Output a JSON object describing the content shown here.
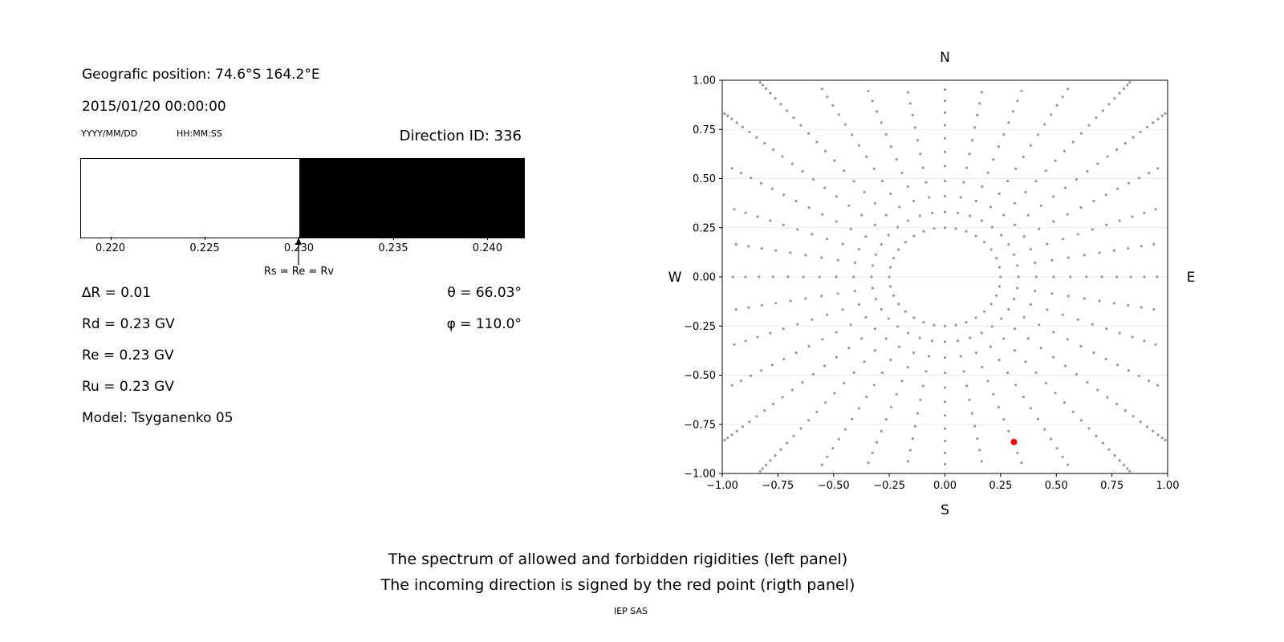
{
  "left_panel": {
    "geo_position": "Geografic position: 74.6°S 164.2°E",
    "datetime": "2015/01/20 00:00:00",
    "date_format_label": "YYYY/MM/DD",
    "time_format_label": "HH:MM:SS",
    "direction_id": "Direction ID: 336",
    "arrow_label": "Rs = Re = Rv",
    "params_left": [
      "∆R = 0.01",
      "Rd = 0.23 GV",
      "Re = 0.23 GV",
      "Ru = 0.23 GV",
      "Model: Tsyganenko 05"
    ],
    "params_right": [
      "θ = 66.03°",
      "φ = 110.0°"
    ]
  },
  "captions": {
    "line1": "The spectrum of allowed and forbidden rigidities (left panel)",
    "line2": "The incoming direction is signed by the red point (rigth panel)",
    "credit": "IEP SAS"
  },
  "chart_data": [
    {
      "type": "area",
      "title": "Spectrum of allowed and forbidden rigidities",
      "xlim": [
        0.2184,
        0.2419
      ],
      "ticks": [
        0.22,
        0.225,
        0.23,
        0.235,
        0.24
      ],
      "tick_labels": [
        "0.220",
        "0.225",
        "0.230",
        "0.235",
        "0.240"
      ],
      "regions": [
        {
          "name": "spectrum-region-white",
          "from": 0.2184,
          "to": 0.23,
          "color": "#ffffff"
        },
        {
          "name": "spectrum-region-black",
          "from": 0.23,
          "to": 0.2419,
          "color": "#000000"
        }
      ],
      "annotation": {
        "x": 0.23,
        "label": "Rs = Re = Rv"
      }
    },
    {
      "type": "scatter",
      "title": "Incoming direction map",
      "xlim": [
        -1,
        1
      ],
      "ylim": [
        -1,
        1
      ],
      "x_ticks": [
        -1,
        -0.75,
        -0.5,
        -0.25,
        0,
        0.25,
        0.5,
        0.75,
        1
      ],
      "y_ticks": [
        1,
        0.75,
        0.5,
        0.25,
        0,
        -0.25,
        -0.5,
        -0.75,
        -1
      ],
      "x_tick_labels": [
        "−1.00",
        "−0.75",
        "−0.50",
        "−0.25",
        "0.00",
        "0.25",
        "0.50",
        "0.75",
        "1.00"
      ],
      "y_tick_labels": [
        "1.00",
        "0.75",
        "0.50",
        "0.25",
        "0.00",
        "−0.25",
        "−0.50",
        "−0.75",
        "−1.00"
      ],
      "compass": {
        "top": "N",
        "bottom": "S",
        "left": "W",
        "right": "E"
      },
      "grid": {
        "horizontal": true,
        "vertical": false,
        "color": "#ececec"
      },
      "dot_color": "#999999",
      "dot_radius": 1.6,
      "inner_ring": {
        "radius": 0.25,
        "points": 32
      },
      "spokes": {
        "count": 36,
        "start_angle_deg": 0,
        "step_deg": 10,
        "r_start": 0.33,
        "r_end": 1.3,
        "points_per_spoke": 20,
        "shape_exp": 1.6,
        "clip": 0.99
      },
      "red_point": {
        "x": 0.31,
        "y": -0.84,
        "color": "#ff0000",
        "radius": 4
      }
    }
  ]
}
